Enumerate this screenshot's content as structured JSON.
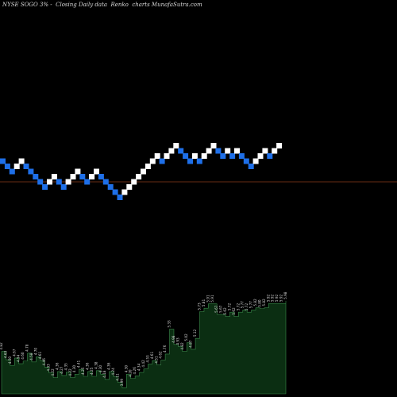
{
  "header": {
    "title": "NYSE SOGO 3% -  Closing Daily data  Renko  charts MunafaSutra.com"
  },
  "colors": {
    "background": "#000000",
    "up_brick": "#ffffff",
    "down_brick": "#1e6fe8",
    "reference_line": "#8b3a1a",
    "volume_fill": "#0b2e12",
    "volume_stroke": "#3a8a4a",
    "label_text": "#d9d9d9"
  },
  "chart_data": {
    "type": "renko",
    "reference_level": 40,
    "bricks": [
      {
        "level": 44,
        "dir": "down"
      },
      {
        "level": 43,
        "dir": "down"
      },
      {
        "level": 42,
        "dir": "down"
      },
      {
        "level": 43,
        "dir": "up"
      },
      {
        "level": 44,
        "dir": "up"
      },
      {
        "level": 43,
        "dir": "down"
      },
      {
        "level": 42,
        "dir": "down"
      },
      {
        "level": 41,
        "dir": "down"
      },
      {
        "level": 40,
        "dir": "down"
      },
      {
        "level": 39,
        "dir": "down"
      },
      {
        "level": 40,
        "dir": "up"
      },
      {
        "level": 41,
        "dir": "up"
      },
      {
        "level": 40,
        "dir": "down"
      },
      {
        "level": 39,
        "dir": "down"
      },
      {
        "level": 40,
        "dir": "up"
      },
      {
        "level": 41,
        "dir": "up"
      },
      {
        "level": 42,
        "dir": "up"
      },
      {
        "level": 41,
        "dir": "down"
      },
      {
        "level": 40,
        "dir": "down"
      },
      {
        "level": 41,
        "dir": "up"
      },
      {
        "level": 42,
        "dir": "up"
      },
      {
        "level": 41,
        "dir": "down"
      },
      {
        "level": 40,
        "dir": "down"
      },
      {
        "level": 39,
        "dir": "down"
      },
      {
        "level": 38,
        "dir": "down"
      },
      {
        "level": 37,
        "dir": "down"
      },
      {
        "level": 38,
        "dir": "up"
      },
      {
        "level": 39,
        "dir": "up"
      },
      {
        "level": 40,
        "dir": "up"
      },
      {
        "level": 41,
        "dir": "up"
      },
      {
        "level": 42,
        "dir": "up"
      },
      {
        "level": 43,
        "dir": "up"
      },
      {
        "level": 44,
        "dir": "up"
      },
      {
        "level": 45,
        "dir": "up"
      },
      {
        "level": 44,
        "dir": "down"
      },
      {
        "level": 45,
        "dir": "up"
      },
      {
        "level": 46,
        "dir": "up"
      },
      {
        "level": 47,
        "dir": "up"
      },
      {
        "level": 46,
        "dir": "down"
      },
      {
        "level": 45,
        "dir": "down"
      },
      {
        "level": 44,
        "dir": "down"
      },
      {
        "level": 45,
        "dir": "up"
      },
      {
        "level": 44,
        "dir": "down"
      },
      {
        "level": 45,
        "dir": "up"
      },
      {
        "level": 46,
        "dir": "up"
      },
      {
        "level": 47,
        "dir": "up"
      },
      {
        "level": 46,
        "dir": "down"
      },
      {
        "level": 45,
        "dir": "down"
      },
      {
        "level": 46,
        "dir": "up"
      },
      {
        "level": 45,
        "dir": "down"
      },
      {
        "level": 46,
        "dir": "up"
      },
      {
        "level": 45,
        "dir": "down"
      },
      {
        "level": 44,
        "dir": "down"
      },
      {
        "level": 43,
        "dir": "down"
      },
      {
        "level": 44,
        "dir": "up"
      },
      {
        "level": 45,
        "dir": "up"
      },
      {
        "level": 46,
        "dir": "up"
      },
      {
        "level": 45,
        "dir": "down"
      },
      {
        "level": 46,
        "dir": "up"
      },
      {
        "level": 47,
        "dir": "up"
      }
    ],
    "prices": [
      {
        "label": "4.82",
        "value": 4.82
      },
      {
        "label": "4.63",
        "value": 4.63
      },
      {
        "label": "4.50",
        "value": 4.5
      },
      {
        "label": "4.67",
        "value": 4.67
      },
      {
        "label": "4.54",
        "value": 4.54
      },
      {
        "label": "4.60",
        "value": 4.6
      },
      {
        "label": "4.78",
        "value": 4.78
      },
      {
        "label": "4.58",
        "value": 4.58
      },
      {
        "label": "4.70",
        "value": 4.7
      },
      {
        "label": "4.61",
        "value": 4.61
      },
      {
        "label": "4.46",
        "value": 4.46
      },
      {
        "label": "4.33",
        "value": 4.33
      },
      {
        "label": "4.22",
        "value": 4.22
      },
      {
        "label": "4.36",
        "value": 4.36
      },
      {
        "label": "4.27",
        "value": 4.27
      },
      {
        "label": "4.35",
        "value": 4.35
      },
      {
        "label": "4.22",
        "value": 4.22
      },
      {
        "label": "4.30",
        "value": 4.3
      },
      {
        "label": "4.41",
        "value": 4.41
      },
      {
        "label": "4.25",
        "value": 4.25
      },
      {
        "label": "4.36",
        "value": 4.36
      },
      {
        "label": "4.25",
        "value": 4.25
      },
      {
        "label": "4.38",
        "value": 4.38
      },
      {
        "label": "4.30",
        "value": 4.3
      },
      {
        "label": "4.18",
        "value": 4.18
      },
      {
        "label": "4.36",
        "value": 4.36
      },
      {
        "label": "4.24",
        "value": 4.24
      },
      {
        "label": "4.11",
        "value": 4.11
      },
      {
        "label": "3.99",
        "value": 3.99
      },
      {
        "label": "4.30",
        "value": 4.3
      },
      {
        "label": "4.20",
        "value": 4.2
      },
      {
        "label": "4.26",
        "value": 4.26
      },
      {
        "label": "4.34",
        "value": 4.34
      },
      {
        "label": "4.42",
        "value": 4.42
      },
      {
        "label": "4.53",
        "value": 4.53
      },
      {
        "label": "4.61",
        "value": 4.61
      },
      {
        "label": "4.51",
        "value": 4.51
      },
      {
        "label": "4.62",
        "value": 4.62
      },
      {
        "label": "4.76",
        "value": 4.76
      },
      {
        "label": "5.33",
        "value": 5.33
      },
      {
        "label": "4.98",
        "value": 4.98
      },
      {
        "label": "4.93",
        "value": 4.93
      },
      {
        "label": "4.82",
        "value": 4.82
      },
      {
        "label": "5.02",
        "value": 5.02
      },
      {
        "label": "4.87",
        "value": 4.87
      },
      {
        "label": "5.12",
        "value": 5.12
      },
      {
        "label": "5.73",
        "value": 5.73
      },
      {
        "label": "5.81",
        "value": 5.81
      },
      {
        "label": "5.91",
        "value": 5.91
      },
      {
        "label": "5.91",
        "value": 5.91
      },
      {
        "label": "5.67",
        "value": 5.67
      },
      {
        "label": "5.67",
        "value": 5.67
      },
      {
        "label": "5.62",
        "value": 5.62
      },
      {
        "label": "5.72",
        "value": 5.72
      },
      {
        "label": "5.62",
        "value": 5.62
      },
      {
        "label": "5.72",
        "value": 5.72
      },
      {
        "label": "5.77",
        "value": 5.77
      },
      {
        "label": "5.72",
        "value": 5.72
      },
      {
        "label": "5.77",
        "value": 5.77
      },
      {
        "label": "5.82",
        "value": 5.82
      },
      {
        "label": "5.80",
        "value": 5.8
      },
      {
        "label": "5.82",
        "value": 5.82
      },
      {
        "label": "5.92",
        "value": 5.92
      },
      {
        "label": "5.92",
        "value": 5.92
      },
      {
        "label": "5.92",
        "value": 5.92
      },
      {
        "label": "5.92",
        "value": 5.92
      },
      {
        "label": "5.98",
        "value": 5.98
      }
    ]
  }
}
